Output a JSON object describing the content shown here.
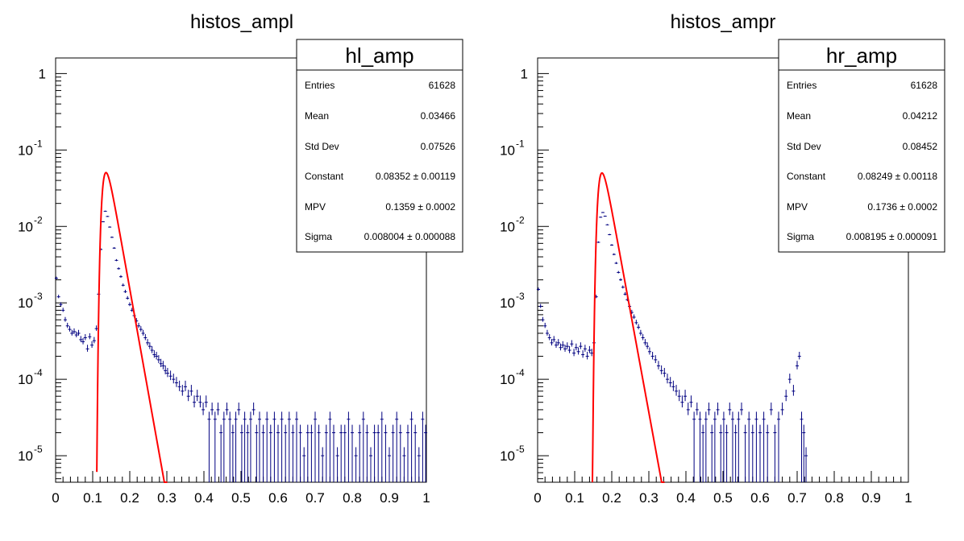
{
  "chart_data": [
    {
      "type": "line",
      "title": "histos_ampl",
      "xlabel": "",
      "ylabel": "",
      "xlim": [
        0,
        1
      ],
      "ylim": [
        4.5e-06,
        1.6
      ],
      "log_y": true,
      "x_ticks": [
        "0",
        "0.1",
        "0.2",
        "0.3",
        "0.4",
        "0.5",
        "0.6",
        "0.7",
        "0.8",
        "0.9",
        "1"
      ],
      "y_ticks": [
        {
          "base": "10",
          "exp": "-5",
          "value": 1e-05
        },
        {
          "base": "10",
          "exp": "-4",
          "value": 0.0001
        },
        {
          "base": "10",
          "exp": "-3",
          "value": 0.001
        },
        {
          "base": "10",
          "exp": "-2",
          "value": 0.01
        },
        {
          "base": "10",
          "exp": "-1",
          "value": 0.1
        },
        {
          "base": "1",
          "exp": "",
          "value": 1
        }
      ],
      "stats_box": {
        "name": "hl_amp",
        "rows": [
          {
            "label": "Entries",
            "value": "61628"
          },
          {
            "label": "Mean",
            "value": "0.03466"
          },
          {
            "label": "Std Dev",
            "value": "0.07526"
          },
          {
            "label": "Constant",
            "value": "0.08352 ± 0.00119"
          },
          {
            "label": "MPV",
            "value": "0.1359 ± 0.0002"
          },
          {
            "label": "Sigma",
            "value": "0.008004 ± 0.000088"
          }
        ]
      },
      "fit": {
        "type": "landau",
        "constant": 0.08352,
        "mpv": 0.1359,
        "sigma": 0.008004,
        "color": "#ff0000"
      },
      "histogram_color": "#000080",
      "histogram_points": [
        [
          0.002,
          0.0021
        ],
        [
          0.008,
          0.0012
        ],
        [
          0.014,
          0.00095
        ],
        [
          0.02,
          0.0008
        ],
        [
          0.026,
          0.0006
        ],
        [
          0.032,
          0.0005
        ],
        [
          0.038,
          0.00045
        ],
        [
          0.044,
          0.0004
        ],
        [
          0.05,
          0.00042
        ],
        [
          0.056,
          0.00038
        ],
        [
          0.062,
          0.0004
        ],
        [
          0.068,
          0.00033
        ],
        [
          0.074,
          0.00031
        ],
        [
          0.08,
          0.00035
        ],
        [
          0.086,
          0.00025
        ],
        [
          0.092,
          0.00036
        ],
        [
          0.098,
          0.00028
        ],
        [
          0.104,
          0.00032
        ],
        [
          0.11,
          0.00046
        ],
        [
          0.116,
          0.0013
        ],
        [
          0.122,
          0.005
        ],
        [
          0.128,
          0.0115
        ],
        [
          0.134,
          0.0158
        ],
        [
          0.14,
          0.0135
        ],
        [
          0.146,
          0.0098
        ],
        [
          0.152,
          0.0072
        ],
        [
          0.158,
          0.0052
        ],
        [
          0.164,
          0.0036
        ],
        [
          0.17,
          0.0028
        ],
        [
          0.176,
          0.0022
        ],
        [
          0.182,
          0.0017
        ],
        [
          0.188,
          0.0014
        ],
        [
          0.194,
          0.00115
        ],
        [
          0.2,
          0.00095
        ],
        [
          0.206,
          0.0008
        ],
        [
          0.212,
          0.00068
        ],
        [
          0.218,
          0.00058
        ],
        [
          0.224,
          0.0005
        ],
        [
          0.23,
          0.00045
        ],
        [
          0.236,
          0.0004
        ],
        [
          0.242,
          0.00035
        ],
        [
          0.248,
          0.0003
        ],
        [
          0.254,
          0.00027
        ],
        [
          0.26,
          0.00024
        ],
        [
          0.266,
          0.00021
        ],
        [
          0.272,
          0.0002
        ],
        [
          0.278,
          0.00018
        ],
        [
          0.284,
          0.00016
        ],
        [
          0.29,
          0.00015
        ],
        [
          0.296,
          0.00013
        ],
        [
          0.302,
          0.00012
        ],
        [
          0.31,
          0.00011
        ],
        [
          0.318,
          0.0001
        ],
        [
          0.326,
          9e-05
        ],
        [
          0.334,
          8e-05
        ],
        [
          0.342,
          7e-05
        ],
        [
          0.35,
          8e-05
        ],
        [
          0.358,
          6e-05
        ],
        [
          0.366,
          7e-05
        ],
        [
          0.374,
          5e-05
        ],
        [
          0.382,
          6e-05
        ],
        [
          0.39,
          5e-05
        ],
        [
          0.398,
          4e-05
        ],
        [
          0.406,
          5e-05
        ],
        [
          0.414,
          3e-05
        ],
        [
          0.422,
          4e-05
        ],
        [
          0.43,
          3e-05
        ],
        [
          0.438,
          4e-05
        ],
        [
          0.446,
          2e-05
        ],
        [
          0.454,
          3e-05
        ],
        [
          0.462,
          4e-05
        ],
        [
          0.47,
          3e-05
        ],
        [
          0.478,
          2e-05
        ],
        [
          0.486,
          3e-05
        ],
        [
          0.494,
          4e-05
        ],
        [
          0.502,
          2e-05
        ],
        [
          0.51,
          3e-05
        ],
        [
          0.518,
          2e-05
        ],
        [
          0.526,
          3e-05
        ],
        [
          0.534,
          4e-05
        ],
        [
          0.542,
          2e-05
        ],
        [
          0.55,
          3e-05
        ],
        [
          0.56,
          2e-05
        ],
        [
          0.57,
          3e-05
        ],
        [
          0.58,
          2e-05
        ],
        [
          0.59,
          3e-05
        ],
        [
          0.6,
          2e-05
        ],
        [
          0.61,
          3e-05
        ],
        [
          0.62,
          2e-05
        ],
        [
          0.63,
          3e-05
        ],
        [
          0.64,
          2e-05
        ],
        [
          0.65,
          3e-05
        ],
        [
          0.66,
          2e-05
        ],
        [
          0.67,
          1e-05
        ],
        [
          0.68,
          2e-05
        ],
        [
          0.69,
          2e-05
        ],
        [
          0.7,
          3e-05
        ],
        [
          0.71,
          2e-05
        ],
        [
          0.72,
          1e-05
        ],
        [
          0.73,
          2e-05
        ],
        [
          0.74,
          3e-05
        ],
        [
          0.75,
          2e-05
        ],
        [
          0.76,
          1e-05
        ],
        [
          0.77,
          2e-05
        ],
        [
          0.78,
          2e-05
        ],
        [
          0.79,
          3e-05
        ],
        [
          0.8,
          2e-05
        ],
        [
          0.81,
          1e-05
        ],
        [
          0.82,
          2e-05
        ],
        [
          0.83,
          3e-05
        ],
        [
          0.84,
          2e-05
        ],
        [
          0.85,
          1e-05
        ],
        [
          0.86,
          2e-05
        ],
        [
          0.87,
          2e-05
        ],
        [
          0.88,
          3e-05
        ],
        [
          0.89,
          2e-05
        ],
        [
          0.9,
          1e-05
        ],
        [
          0.91,
          2e-05
        ],
        [
          0.92,
          3e-05
        ],
        [
          0.93,
          2e-05
        ],
        [
          0.94,
          1e-05
        ],
        [
          0.95,
          2e-05
        ],
        [
          0.96,
          3e-05
        ],
        [
          0.97,
          2e-05
        ],
        [
          0.98,
          1e-05
        ],
        [
          0.99,
          3e-05
        ],
        [
          0.998,
          2e-05
        ]
      ]
    },
    {
      "type": "line",
      "title": "histos_ampr",
      "xlabel": "",
      "ylabel": "",
      "xlim": [
        0,
        1
      ],
      "ylim": [
        4.5e-06,
        1.6
      ],
      "log_y": true,
      "x_ticks": [
        "0",
        "0.1",
        "0.2",
        "0.3",
        "0.4",
        "0.5",
        "0.6",
        "0.7",
        "0.8",
        "0.9",
        "1"
      ],
      "y_ticks": [
        {
          "base": "10",
          "exp": "-5",
          "value": 1e-05
        },
        {
          "base": "10",
          "exp": "-4",
          "value": 0.0001
        },
        {
          "base": "10",
          "exp": "-3",
          "value": 0.001
        },
        {
          "base": "10",
          "exp": "-2",
          "value": 0.01
        },
        {
          "base": "10",
          "exp": "-1",
          "value": 0.1
        },
        {
          "base": "1",
          "exp": "",
          "value": 1
        }
      ],
      "stats_box": {
        "name": "hr_amp",
        "rows": [
          {
            "label": "Entries",
            "value": "61628"
          },
          {
            "label": "Mean",
            "value": "0.04212"
          },
          {
            "label": "Std Dev",
            "value": "0.08452"
          },
          {
            "label": "Constant",
            "value": "0.08249 ± 0.00118"
          },
          {
            "label": "MPV",
            "value": "0.1736 ± 0.0002"
          },
          {
            "label": "Sigma",
            "value": "0.008195 ± 0.000091"
          }
        ]
      },
      "fit": {
        "type": "landau",
        "constant": 0.08249,
        "mpv": 0.1736,
        "sigma": 0.008195,
        "color": "#ff0000"
      },
      "histogram_color": "#000080",
      "histogram_points": [
        [
          0.002,
          0.0015
        ],
        [
          0.008,
          0.0009
        ],
        [
          0.014,
          0.0006
        ],
        [
          0.02,
          0.0005
        ],
        [
          0.026,
          0.0004
        ],
        [
          0.032,
          0.00035
        ],
        [
          0.038,
          0.0003
        ],
        [
          0.044,
          0.00033
        ],
        [
          0.05,
          0.00028
        ],
        [
          0.056,
          0.0003
        ],
        [
          0.062,
          0.00026
        ],
        [
          0.068,
          0.00028
        ],
        [
          0.074,
          0.00025
        ],
        [
          0.08,
          0.00027
        ],
        [
          0.086,
          0.00024
        ],
        [
          0.092,
          0.00029
        ],
        [
          0.098,
          0.00022
        ],
        [
          0.104,
          0.00026
        ],
        [
          0.11,
          0.00023
        ],
        [
          0.116,
          0.00027
        ],
        [
          0.122,
          0.00021
        ],
        [
          0.128,
          0.00025
        ],
        [
          0.134,
          0.0002
        ],
        [
          0.14,
          0.00024
        ],
        [
          0.146,
          0.00022
        ],
        [
          0.152,
          0.0003
        ],
        [
          0.158,
          0.0012
        ],
        [
          0.164,
          0.0062
        ],
        [
          0.17,
          0.0132
        ],
        [
          0.176,
          0.0152
        ],
        [
          0.182,
          0.0136
        ],
        [
          0.188,
          0.0105
        ],
        [
          0.194,
          0.0078
        ],
        [
          0.2,
          0.0057
        ],
        [
          0.206,
          0.0043
        ],
        [
          0.212,
          0.0033
        ],
        [
          0.218,
          0.0025
        ],
        [
          0.224,
          0.002
        ],
        [
          0.23,
          0.0016
        ],
        [
          0.236,
          0.0013
        ],
        [
          0.242,
          0.0011
        ],
        [
          0.248,
          0.0009
        ],
        [
          0.254,
          0.00075
        ],
        [
          0.26,
          0.00065
        ],
        [
          0.266,
          0.00055
        ],
        [
          0.272,
          0.00048
        ],
        [
          0.278,
          0.0004
        ],
        [
          0.284,
          0.00035
        ],
        [
          0.29,
          0.0003
        ],
        [
          0.296,
          0.00027
        ],
        [
          0.302,
          0.00023
        ],
        [
          0.31,
          0.0002
        ],
        [
          0.318,
          0.00018
        ],
        [
          0.326,
          0.00015
        ],
        [
          0.334,
          0.00013
        ],
        [
          0.342,
          0.00012
        ],
        [
          0.35,
          0.0001
        ],
        [
          0.358,
          9e-05
        ],
        [
          0.366,
          8e-05
        ],
        [
          0.374,
          7e-05
        ],
        [
          0.382,
          6e-05
        ],
        [
          0.39,
          5e-05
        ],
        [
          0.398,
          6e-05
        ],
        [
          0.406,
          4e-05
        ],
        [
          0.414,
          5e-05
        ],
        [
          0.422,
          3e-05
        ],
        [
          0.43,
          4e-05
        ],
        [
          0.438,
          3e-05
        ],
        [
          0.446,
          2e-05
        ],
        [
          0.454,
          3e-05
        ],
        [
          0.462,
          4e-05
        ],
        [
          0.47,
          2e-05
        ],
        [
          0.478,
          3e-05
        ],
        [
          0.486,
          4e-05
        ],
        [
          0.494,
          2e-05
        ],
        [
          0.502,
          3e-05
        ],
        [
          0.51,
          2e-05
        ],
        [
          0.518,
          4e-05
        ],
        [
          0.526,
          3e-05
        ],
        [
          0.534,
          2e-05
        ],
        [
          0.542,
          3e-05
        ],
        [
          0.55,
          4e-05
        ],
        [
          0.56,
          2e-05
        ],
        [
          0.57,
          3e-05
        ],
        [
          0.58,
          2e-05
        ],
        [
          0.59,
          3e-05
        ],
        [
          0.6,
          2e-05
        ],
        [
          0.61,
          3e-05
        ],
        [
          0.62,
          2e-05
        ],
        [
          0.63,
          4e-05
        ],
        [
          0.64,
          2e-05
        ],
        [
          0.65,
          3e-05
        ],
        [
          0.66,
          4e-05
        ],
        [
          0.67,
          6e-05
        ],
        [
          0.68,
          0.0001
        ],
        [
          0.69,
          7e-05
        ],
        [
          0.7,
          0.00015
        ],
        [
          0.706,
          0.0002
        ],
        [
          0.712,
          3e-05
        ],
        [
          0.718,
          2e-05
        ],
        [
          0.724,
          1e-05
        ]
      ]
    }
  ]
}
